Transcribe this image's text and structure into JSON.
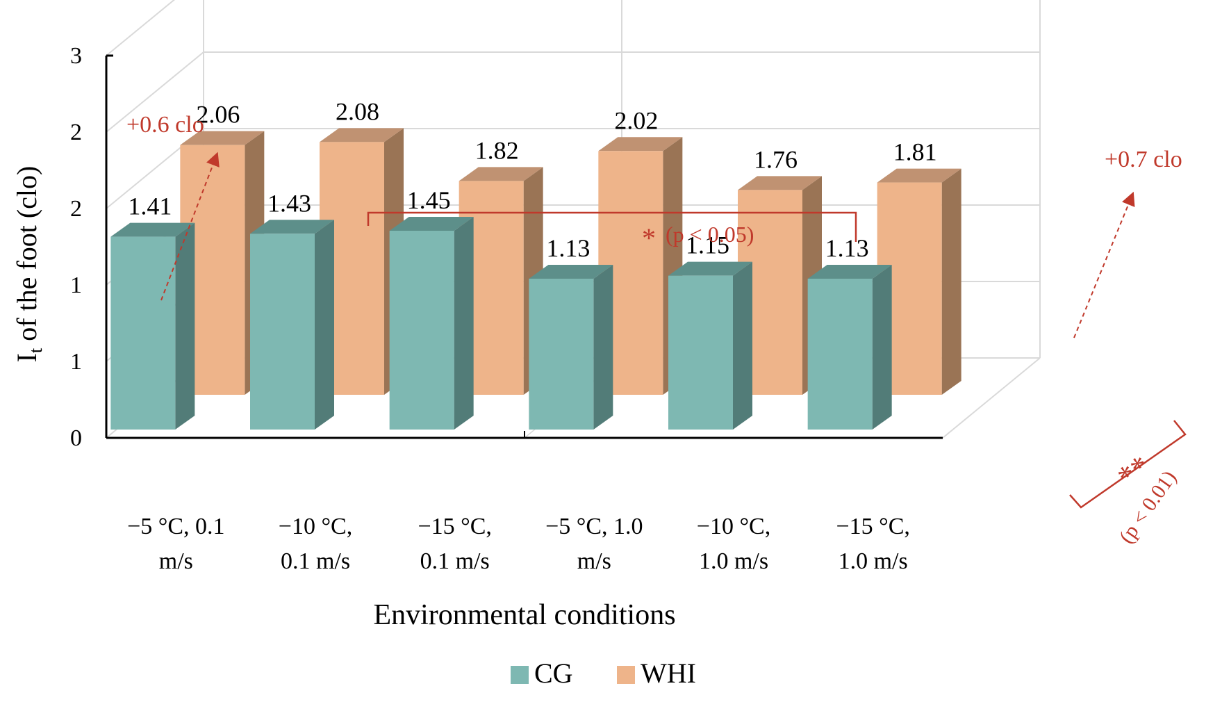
{
  "chart_data": {
    "type": "bar",
    "title": "",
    "xlabel": "Environmental conditions",
    "ylabel_main": "I",
    "ylabel_sub": "t",
    "ylabel_rest": " of the foot (clo)",
    "y_tick_labels": [
      "0",
      "1",
      "1",
      "2",
      "2",
      "3"
    ],
    "ylim": [
      0,
      2.5
    ],
    "categories": [
      [
        "−5 °C, 0.1",
        "m/s"
      ],
      [
        "−10 °C,",
        "0.1 m/s"
      ],
      [
        "−15 °C,",
        "0.1 m/s"
      ],
      [
        "−5 °C, 1.0",
        "m/s"
      ],
      [
        "−10 °C,",
        "1.0 m/s"
      ],
      [
        "−15 °C,",
        "1.0 m/s"
      ]
    ],
    "series": [
      {
        "name": "CG",
        "values": [
          1.41,
          1.43,
          1.45,
          1.13,
          1.15,
          1.13
        ]
      },
      {
        "name": "WHI",
        "values": [
          2.06,
          2.08,
          1.82,
          2.02,
          1.76,
          1.81
        ]
      }
    ],
    "data_labels": {
      "CG": [
        "1.41",
        "1.43",
        "1.45",
        "1.13",
        "1.15",
        "1.13"
      ],
      "WHI": [
        "2.06",
        "2.08",
        "1.82",
        "2.02",
        "1.76",
        "1.81"
      ]
    },
    "annotations": {
      "left_increase": "+0.6 clo",
      "right_increase": "+0.7 clo",
      "sig_bracket_star": "*",
      "sig_bracket_text": "(p < 0.05)",
      "sig_side_stars": "**",
      "sig_side_text": "(p < 0.01)"
    },
    "legend": {
      "position": "bottom-center",
      "items": [
        "CG",
        "WHI"
      ]
    },
    "colors": {
      "CG_front": "#7eb8b2",
      "CG_side": "#527c78",
      "CG_top": "#5d8f8a",
      "WHI_front": "#eeb48a",
      "WHI_side": "#9a7455",
      "WHI_top": "#c09272",
      "annotation": "#c0392b",
      "grid": "#d9d9d9",
      "axis": "#000000"
    }
  }
}
